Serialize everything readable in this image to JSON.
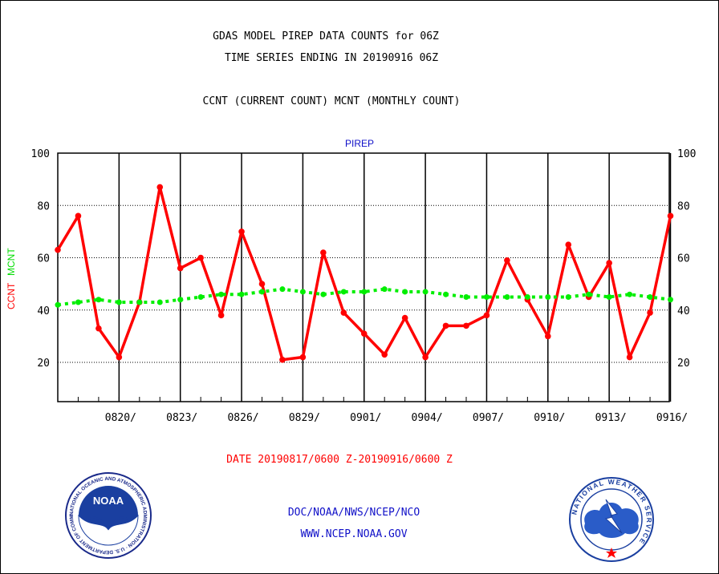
{
  "header": {
    "title_line1": "GDAS MODEL PIREP DATA COUNTS for 06Z",
    "title_line2": "TIME SERIES ENDING IN 20190916 06Z",
    "subtitle": "CCNT (CURRENT COUNT) MCNT (MONTHLY COUNT)"
  },
  "footer": {
    "date_range": "DATE 20190817/0600 Z-20190916/0600 Z",
    "org": "DOC/NOAA/NWS/NCEP/NCO",
    "url": "WWW.NCEP.NOAA.GOV"
  },
  "logos": {
    "noaa_center": "NOAA",
    "noaa_ring": "NATIONAL OCEANIC AND ATMOSPHERIC ADMINISTRATION · U.S. DEPARTMENT OF COMMERCE",
    "nws_ring": "NATIONAL WEATHER SERVICE"
  },
  "colors": {
    "ccnt": "#ff0000",
    "mcnt": "#00ee00",
    "title_blue": "#1010c8",
    "grid": "#000000"
  },
  "chart_data": {
    "type": "line",
    "title": "PIREP",
    "ylabel_left_1": "CCNT",
    "ylabel_left_2": "MCNT",
    "ylim": [
      5,
      100
    ],
    "yticks": [
      20,
      40,
      60,
      80,
      100
    ],
    "x_start": "0817",
    "x_tick_labels": [
      "0820/",
      "0823/",
      "0826/",
      "0829/",
      "0901/",
      "0904/",
      "0907/",
      "0910/",
      "0913/",
      "0916/"
    ],
    "x": [
      "0817",
      "0818",
      "0819",
      "0820",
      "0821",
      "0822",
      "0823",
      "0824",
      "0825",
      "0826",
      "0827",
      "0828",
      "0829",
      "0830",
      "0831",
      "0901",
      "0902",
      "0903",
      "0904",
      "0905",
      "0906",
      "0907",
      "0908",
      "0909",
      "0910",
      "0911",
      "0912",
      "0913",
      "0914",
      "0915",
      "0916"
    ],
    "series": [
      {
        "name": "CCNT",
        "color": "#ff0000",
        "values": [
          63,
          76,
          33,
          22,
          43,
          87,
          56,
          60,
          38,
          70,
          50,
          21,
          22,
          62,
          39,
          31,
          23,
          37,
          22,
          34,
          34,
          38,
          59,
          44,
          30,
          65,
          45,
          58,
          22,
          39,
          76
        ]
      },
      {
        "name": "MCNT",
        "color": "#00ee00",
        "values": [
          42,
          43,
          44,
          43,
          43,
          43,
          44,
          45,
          46,
          46,
          47,
          48,
          47,
          46,
          47,
          47,
          48,
          47,
          47,
          46,
          45,
          45,
          45,
          45,
          45,
          45,
          46,
          45,
          46,
          45,
          44
        ]
      }
    ]
  }
}
